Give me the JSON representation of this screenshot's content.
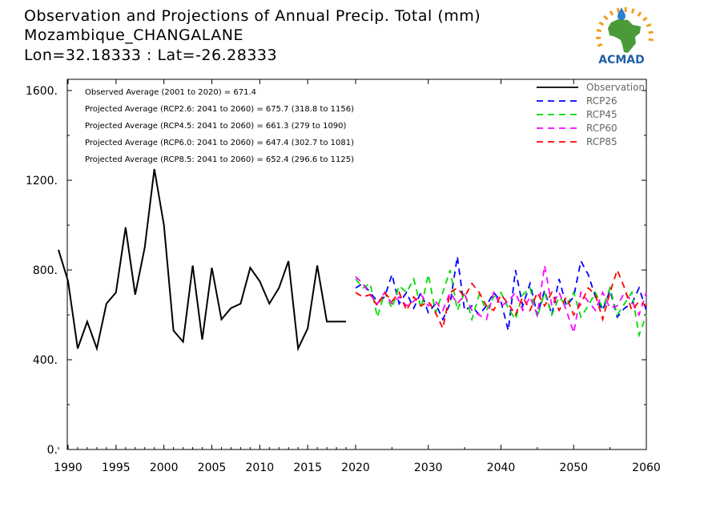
{
  "header": {
    "title": "Observation and Projections of Annual Precip. Total (mm)",
    "location": "Mozambique_CHANGALANE",
    "coords": "Lon=32.18333 : Lat=-26.28333"
  },
  "logo": {
    "text": "ACMAD",
    "colors": {
      "africa": "#4a9a3a",
      "rays": "#f0a020",
      "drop": "#2a7fd0",
      "text": "#1f5fa8"
    }
  },
  "stats": [
    "Observed Average (2001 to 2020) = 671.4",
    "Projected Average (RCP2.6: 2041 to 2060) = 675.7 (318.8 to 1156)",
    "Projected Average (RCP4.5: 2041 to 2060) = 661.3 (279 to 1090)",
    "Projected Average (RCP6.0: 2041 to 2060) = 647.4 (302.7 to 1081)",
    "Projected Average (RCP8.5: 2041 to 2060) = 652.4 (296.6 to 1125)"
  ],
  "legend": [
    {
      "label": "Observation",
      "color": "#000000",
      "dashed": false
    },
    {
      "label": "RCP26",
      "color": "#0000ff",
      "dashed": true
    },
    {
      "label": "RCP45",
      "color": "#00dd00",
      "dashed": true
    },
    {
      "label": "RCP60",
      "color": "#ff00ff",
      "dashed": true
    },
    {
      "label": "RCP85",
      "color": "#ff0000",
      "dashed": true
    }
  ],
  "chart_data": {
    "type": "line",
    "title": "Observation and Projections of Annual Precip. Total (mm)",
    "xlabel": "",
    "ylabel": "",
    "xlim": [
      1989,
      2060
    ],
    "ylim": [
      0,
      1650
    ],
    "grid": false,
    "legend_position": "top-right",
    "x_axis": {
      "segment1": {
        "range": [
          1989,
          2020
        ],
        "ticks": [
          "1990",
          "1995",
          "2000",
          "2005",
          "2010",
          "2015",
          "2020"
        ],
        "tick_values": [
          1990,
          1995,
          2000,
          2005,
          2010,
          2015,
          2020
        ]
      },
      "segment2": {
        "range": [
          2020,
          2060
        ],
        "ticks": [
          "2030",
          "2040",
          "2050",
          "2060"
        ],
        "tick_values": [
          2030,
          2040,
          2050,
          2060
        ]
      }
    },
    "y_ticks": [
      {
        "value": 0,
        "label": "0."
      },
      {
        "value": 400,
        "label": "400."
      },
      {
        "value": 800,
        "label": "800."
      },
      {
        "value": 1200,
        "label": "1200."
      },
      {
        "value": 1600,
        "label": "1600."
      }
    ],
    "series": [
      {
        "name": "Observation",
        "color": "#000000",
        "dashed": false,
        "x": [
          1989,
          1990,
          1991,
          1992,
          1993,
          1994,
          1995,
          1996,
          1997,
          1998,
          1999,
          2000,
          2001,
          2002,
          2003,
          2004,
          2005,
          2006,
          2007,
          2008,
          2009,
          2010,
          2011,
          2012,
          2013,
          2014,
          2015,
          2016,
          2017,
          2018,
          2019
        ],
        "y": [
          890,
          750,
          450,
          570,
          450,
          650,
          700,
          990,
          690,
          900,
          1250,
          1000,
          530,
          480,
          820,
          490,
          810,
          580,
          630,
          650,
          810,
          750,
          650,
          720,
          840,
          450,
          540,
          820,
          570,
          570,
          570
        ]
      },
      {
        "name": "RCP26",
        "color": "#0000ff",
        "dashed": true,
        "x": [
          2020,
          2021,
          2022,
          2023,
          2024,
          2025,
          2026,
          2027,
          2028,
          2029,
          2030,
          2031,
          2032,
          2033,
          2034,
          2035,
          2036,
          2037,
          2038,
          2039,
          2040,
          2041,
          2042,
          2043,
          2044,
          2045,
          2046,
          2047,
          2048,
          2049,
          2050,
          2051,
          2052,
          2053,
          2054,
          2055,
          2056,
          2057,
          2058,
          2059,
          2060
        ],
        "y": [
          720,
          740,
          700,
          660,
          680,
          780,
          650,
          700,
          630,
          700,
          610,
          650,
          580,
          650,
          860,
          620,
          640,
          600,
          640,
          700,
          660,
          530,
          800,
          640,
          740,
          600,
          710,
          600,
          760,
          640,
          680,
          840,
          780,
          680,
          620,
          710,
          590,
          630,
          650,
          720,
          620
        ]
      },
      {
        "name": "RCP45",
        "color": "#00dd00",
        "dashed": true,
        "x": [
          2020,
          2021,
          2022,
          2023,
          2024,
          2025,
          2026,
          2027,
          2028,
          2029,
          2030,
          2031,
          2032,
          2033,
          2034,
          2035,
          2036,
          2037,
          2038,
          2039,
          2040,
          2041,
          2042,
          2043,
          2044,
          2045,
          2046,
          2047,
          2048,
          2049,
          2050,
          2051,
          2052,
          2053,
          2054,
          2055,
          2056,
          2057,
          2058,
          2059,
          2060
        ],
        "y": [
          760,
          720,
          740,
          590,
          700,
          630,
          730,
          700,
          760,
          630,
          780,
          610,
          700,
          800,
          620,
          700,
          580,
          690,
          620,
          680,
          700,
          630,
          580,
          690,
          720,
          590,
          700,
          600,
          680,
          640,
          700,
          590,
          640,
          700,
          630,
          720,
          600,
          650,
          700,
          510,
          600
        ]
      },
      {
        "name": "RCP60",
        "color": "#ff00ff",
        "dashed": true,
        "x": [
          2020,
          2021,
          2022,
          2023,
          2024,
          2025,
          2026,
          2027,
          2028,
          2029,
          2030,
          2031,
          2032,
          2033,
          2034,
          2035,
          2036,
          2037,
          2038,
          2039,
          2040,
          2041,
          2042,
          2043,
          2044,
          2045,
          2046,
          2047,
          2048,
          2049,
          2050,
          2051,
          2052,
          2053,
          2054,
          2055,
          2056,
          2057,
          2058,
          2059,
          2060
        ],
        "y": [
          770,
          740,
          690,
          650,
          700,
          650,
          680,
          640,
          660,
          690,
          640,
          660,
          620,
          700,
          650,
          690,
          620,
          600,
          580,
          700,
          640,
          660,
          700,
          620,
          680,
          600,
          820,
          640,
          700,
          620,
          520,
          700,
          660,
          620,
          700,
          630,
          640,
          700,
          660,
          600,
          700
        ]
      },
      {
        "name": "RCP85",
        "color": "#ff0000",
        "dashed": true,
        "x": [
          2020,
          2021,
          2022,
          2023,
          2024,
          2025,
          2026,
          2027,
          2028,
          2029,
          2030,
          2031,
          2032,
          2033,
          2034,
          2035,
          2036,
          2037,
          2038,
          2039,
          2040,
          2041,
          2042,
          2043,
          2044,
          2045,
          2046,
          2047,
          2048,
          2049,
          2050,
          2051,
          2052,
          2053,
          2054,
          2055,
          2056,
          2057,
          2058,
          2059,
          2060
        ],
        "y": [
          700,
          680,
          690,
          640,
          700,
          660,
          700,
          620,
          680,
          640,
          660,
          610,
          540,
          700,
          720,
          680,
          740,
          700,
          640,
          620,
          690,
          650,
          600,
          680,
          620,
          700,
          640,
          700,
          620,
          680,
          600,
          650,
          720,
          690,
          580,
          700,
          800,
          720,
          620,
          660,
          640
        ]
      }
    ]
  }
}
